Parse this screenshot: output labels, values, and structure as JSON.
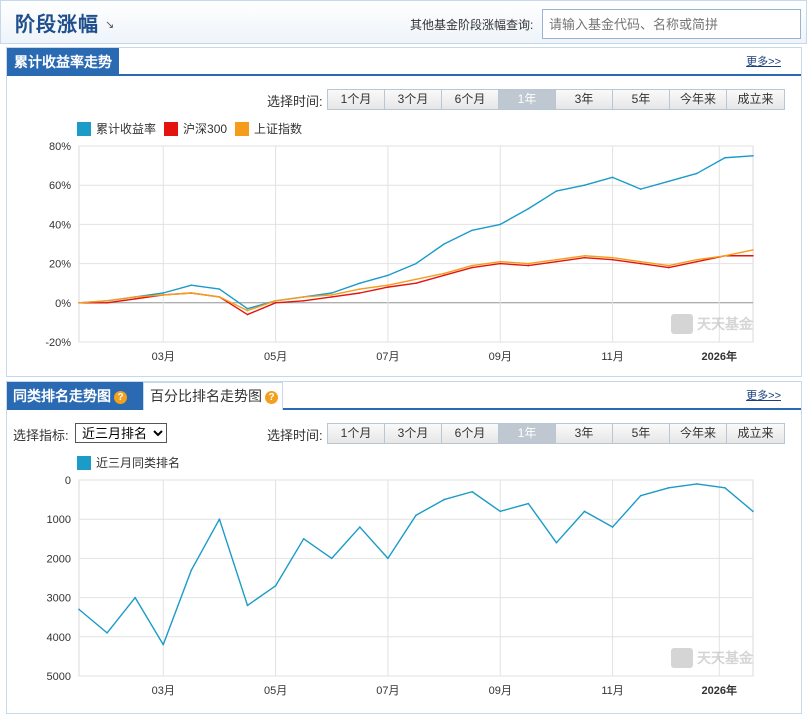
{
  "header": {
    "title": "阶段涨幅",
    "title_arrow": "↘",
    "query_label": "其他基金阶段涨幅查询:",
    "query_placeholder": "请输入基金代码、名称或简拼"
  },
  "panel1": {
    "title": "累计收益率走势",
    "more": "更多>>",
    "range_label": "选择时间:",
    "ranges": [
      "1个月",
      "3个月",
      "6个月",
      "1年",
      "3年",
      "5年",
      "今年来",
      "成立来"
    ],
    "active_range": "1年",
    "legend": [
      {
        "name": "累计收益率",
        "color": "#1a9bc8"
      },
      {
        "name": "沪深300",
        "color": "#e3140e"
      },
      {
        "name": "上证指数",
        "color": "#f59d1b"
      }
    ],
    "watermark": "天天基金"
  },
  "panel2": {
    "tab_active": "同类排名走势图",
    "tab_inactive": "百分比排名走势图",
    "more": "更多>>",
    "metric_label": "选择指标:",
    "metric_value": "近三月排名",
    "range_label": "选择时间:",
    "ranges": [
      "1个月",
      "3个月",
      "6个月",
      "1年",
      "3年",
      "5年",
      "今年来",
      "成立来"
    ],
    "active_range": "1年",
    "legend": [
      {
        "name": "近三月同类排名",
        "color": "#1a9bc8"
      }
    ],
    "watermark": "天天基金"
  },
  "chart_data": [
    {
      "type": "line",
      "x": [
        0,
        0.5,
        1,
        1.5,
        2,
        2.5,
        3,
        3.5,
        4,
        4.5,
        5,
        5.5,
        6,
        6.5,
        7,
        7.5,
        8,
        8.5,
        9,
        9.5,
        10,
        10.5,
        11,
        11.5,
        12
      ],
      "x_tick_labels": [
        "03月",
        "05月",
        "07月",
        "09月",
        "11月",
        "2026年"
      ],
      "x_tick_positions": [
        1.5,
        3.5,
        5.5,
        7.5,
        9.5,
        11.4
      ],
      "ylim": [
        -20,
        80
      ],
      "yticks": [
        "80%",
        "60%",
        "40%",
        "20%",
        "0%",
        "-20%"
      ],
      "series": [
        {
          "name": "累计收益率",
          "color": "#1a9bc8",
          "values": [
            0,
            1,
            3,
            5,
            9,
            7,
            -3,
            1,
            3,
            5,
            10,
            14,
            20,
            30,
            37,
            40,
            48,
            57,
            60,
            64,
            58,
            62,
            66,
            74,
            75
          ]
        },
        {
          "name": "沪深300",
          "color": "#e3140e",
          "values": [
            0,
            0,
            2,
            4,
            5,
            3,
            -6,
            0,
            1,
            3,
            5,
            8,
            10,
            14,
            18,
            20,
            19,
            21,
            23,
            22,
            20,
            18,
            21,
            24,
            24
          ]
        },
        {
          "name": "上证指数",
          "color": "#f59d1b",
          "values": [
            0,
            1,
            3,
            4,
            5,
            3,
            -4,
            1,
            3,
            4,
            7,
            9,
            12,
            15,
            19,
            21,
            20,
            22,
            24,
            23,
            21,
            19,
            22,
            24,
            27
          ]
        }
      ],
      "grid": true
    },
    {
      "type": "line",
      "x": [
        0,
        0.5,
        1,
        1.5,
        2,
        2.5,
        3,
        3.5,
        4,
        4.5,
        5,
        5.5,
        6,
        6.5,
        7,
        7.5,
        8,
        8.5,
        9,
        9.5,
        10,
        10.5,
        11,
        11.5,
        12
      ],
      "x_tick_labels": [
        "03月",
        "05月",
        "07月",
        "09月",
        "11月",
        "2026年"
      ],
      "x_tick_positions": [
        1.5,
        3.5,
        5.5,
        7.5,
        9.5,
        11.4
      ],
      "ylim": [
        0,
        5000
      ],
      "y_reversed": true,
      "yticks": [
        "0",
        "1000",
        "2000",
        "3000",
        "4000",
        "5000"
      ],
      "series": [
        {
          "name": "近三月同类排名",
          "color": "#1a9bc8",
          "values": [
            3300,
            3900,
            3000,
            4200,
            2300,
            1000,
            3200,
            2700,
            1500,
            2000,
            1200,
            2000,
            900,
            500,
            300,
            800,
            600,
            1600,
            800,
            1200,
            400,
            200,
            100,
            200,
            800
          ]
        }
      ],
      "grid": true
    }
  ]
}
